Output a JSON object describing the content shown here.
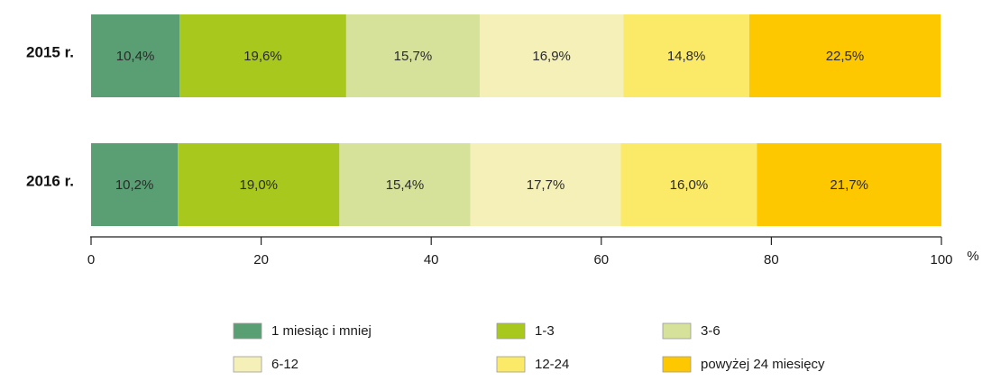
{
  "chart_data": {
    "type": "bar",
    "orientation": "horizontal",
    "stacked": "percent",
    "categories": [
      "2015 r.",
      "2016 r."
    ],
    "series": [
      {
        "name": "1 miesiąc i mniej",
        "color": "#5a9e73",
        "values": [
          10.4,
          10.2
        ],
        "labels": [
          "10,4%",
          "10,2%"
        ]
      },
      {
        "name": "1-3",
        "color": "#a8c81e",
        "values": [
          19.6,
          19.0
        ],
        "labels": [
          "19,6%",
          "19,0%"
        ]
      },
      {
        "name": "3-6",
        "color": "#d6e19a",
        "values": [
          15.7,
          15.4
        ],
        "labels": [
          "15,7%",
          "15,4%"
        ]
      },
      {
        "name": "6-12",
        "color": "#f5f0b8",
        "values": [
          16.9,
          17.7
        ],
        "labels": [
          "16,9%",
          "17,7%"
        ]
      },
      {
        "name": "12-24",
        "color": "#fbea67",
        "values": [
          14.8,
          16.0
        ],
        "labels": [
          "14,8%",
          "16,0%"
        ]
      },
      {
        "name": "powyżej 24 miesięcy",
        "color": "#fdc800",
        "values": [
          22.5,
          21.7
        ],
        "labels": [
          "22,5%",
          "21,7%"
        ]
      }
    ],
    "xlim": [
      0,
      100
    ],
    "xticks": [
      0,
      20,
      40,
      60,
      80,
      100
    ],
    "xunit": "%",
    "grid": false,
    "legend_position": "bottom"
  }
}
